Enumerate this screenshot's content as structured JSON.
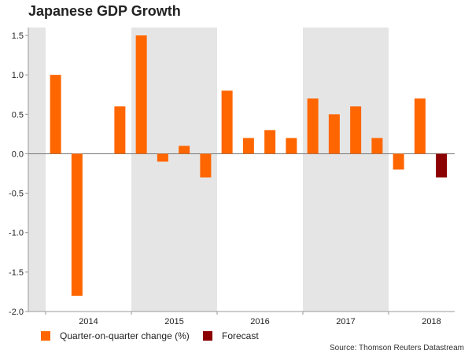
{
  "chart_data": {
    "type": "bar",
    "title": "Japanese GDP Growth",
    "xlabel": "",
    "ylabel": "",
    "ylim": [
      -2.0,
      1.6
    ],
    "yticks": [
      "1.5",
      "1.0",
      "0.5",
      "0.0",
      "-0.5",
      "-1.0",
      "-1.5",
      "-2.0"
    ],
    "ytick_values": [
      1.5,
      1.0,
      0.5,
      0.0,
      -0.5,
      -1.0,
      -1.5,
      -2.0
    ],
    "years": [
      "2014",
      "2015",
      "2016",
      "2017",
      "2018"
    ],
    "shaded_years": [
      "2015",
      "2017"
    ],
    "bars": [
      {
        "quarter": "2014 Q1",
        "value": 1.0,
        "series": "actual"
      },
      {
        "quarter": "2014 Q2",
        "value": -1.8,
        "series": "actual"
      },
      {
        "quarter": "2014 Q3",
        "value": 0.0,
        "series": "actual"
      },
      {
        "quarter": "2014 Q4",
        "value": 0.6,
        "series": "actual"
      },
      {
        "quarter": "2015 Q1",
        "value": 1.5,
        "series": "actual"
      },
      {
        "quarter": "2015 Q2",
        "value": -0.1,
        "series": "actual"
      },
      {
        "quarter": "2015 Q3",
        "value": 0.1,
        "series": "actual"
      },
      {
        "quarter": "2015 Q4",
        "value": -0.3,
        "series": "actual"
      },
      {
        "quarter": "2016 Q1",
        "value": 0.8,
        "series": "actual"
      },
      {
        "quarter": "2016 Q2",
        "value": 0.2,
        "series": "actual"
      },
      {
        "quarter": "2016 Q3",
        "value": 0.3,
        "series": "actual"
      },
      {
        "quarter": "2016 Q4",
        "value": 0.2,
        "series": "actual"
      },
      {
        "quarter": "2017 Q1",
        "value": 0.7,
        "series": "actual"
      },
      {
        "quarter": "2017 Q2",
        "value": 0.5,
        "series": "actual"
      },
      {
        "quarter": "2017 Q3",
        "value": 0.6,
        "series": "actual"
      },
      {
        "quarter": "2017 Q4",
        "value": 0.2,
        "series": "actual"
      },
      {
        "quarter": "2018 Q1",
        "value": -0.2,
        "series": "actual"
      },
      {
        "quarter": "2018 Q2",
        "value": 0.7,
        "series": "actual"
      },
      {
        "quarter": "2018 Q3",
        "value": -0.3,
        "series": "forecast"
      }
    ],
    "legend": [
      {
        "label": "Quarter-on-quarter change (%)",
        "color": "#ff6600"
      },
      {
        "label": "Forecast",
        "color": "#8b0000"
      }
    ],
    "source": "Source: Thomson Reuters Datastream"
  }
}
